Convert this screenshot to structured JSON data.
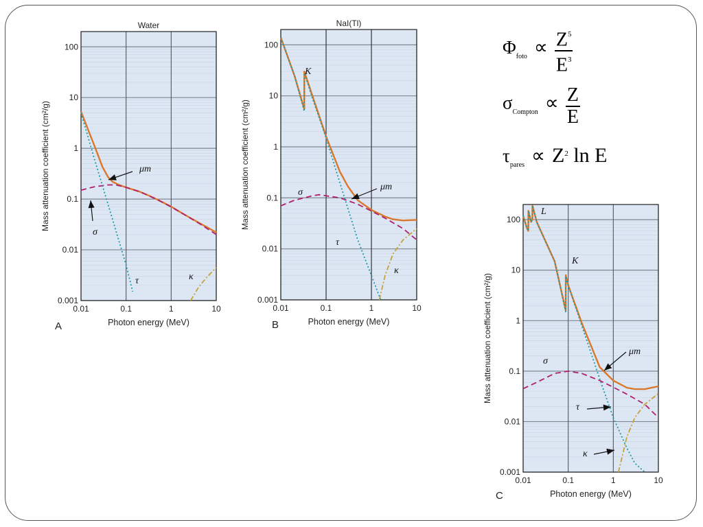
{
  "chart_data": [
    {
      "id": "A",
      "type": "line",
      "title": "Water",
      "panel_letter": "A",
      "xlabel": "Photon energy (MeV)",
      "ylabel": "Mass attenuation coefficient (cm²/g)",
      "x_scale": "log",
      "y_scale": "log",
      "xlim": [
        0.01,
        10
      ],
      "ylim": [
        0.001,
        200
      ],
      "x_ticks": [
        "0.01",
        "0.1",
        "1",
        "10"
      ],
      "y_ticks": [
        "0.001",
        "0.01",
        "0.1",
        "1",
        "10",
        "100"
      ],
      "grid": true,
      "series": [
        {
          "name": "μm",
          "style": "solid",
          "color": "#d9772a",
          "x": [
            0.01,
            0.015,
            0.02,
            0.03,
            0.04,
            0.05,
            0.07,
            0.1,
            0.2,
            0.3,
            0.5,
            1,
            2,
            3,
            5,
            10
          ],
          "y": [
            5.3,
            2.1,
            1.1,
            0.43,
            0.27,
            0.22,
            0.19,
            0.17,
            0.14,
            0.12,
            0.097,
            0.071,
            0.049,
            0.04,
            0.031,
            0.022
          ]
        },
        {
          "name": "σ",
          "style": "dash",
          "color": "#b0206e",
          "x": [
            0.01,
            0.02,
            0.04,
            0.06,
            0.1,
            0.2,
            0.5,
            1,
            2,
            5,
            10
          ],
          "y": [
            0.15,
            0.175,
            0.19,
            0.19,
            0.17,
            0.14,
            0.097,
            0.07,
            0.049,
            0.03,
            0.02
          ]
        },
        {
          "name": "τ",
          "style": "dot",
          "color": "#1a9aa6",
          "x": [
            0.01,
            0.02,
            0.05,
            0.1,
            0.14
          ],
          "y": [
            5,
            0.6,
            0.04,
            0.005,
            0.0015
          ]
        },
        {
          "name": "κ",
          "style": "dashdot",
          "color": "#c4a23a",
          "x": [
            2.7,
            4,
            6,
            10
          ],
          "y": [
            0.001,
            0.0018,
            0.0028,
            0.0045
          ]
        }
      ],
      "annotations": [
        "μm",
        "σ",
        "τ",
        "κ"
      ]
    },
    {
      "id": "B",
      "type": "line",
      "title": "NaI(Tl)",
      "panel_letter": "B",
      "xlabel": "Photon energy (MeV)",
      "ylabel": "Mass attenuation coefficient (cm²/g)",
      "x_scale": "log",
      "y_scale": "log",
      "xlim": [
        0.01,
        10
      ],
      "ylim": [
        0.001,
        200
      ],
      "x_ticks": [
        "0.01",
        "0.1",
        "1",
        "10"
      ],
      "y_ticks": [
        "0.001",
        "0.01",
        "0.1",
        "1",
        "10",
        "100"
      ],
      "grid": true,
      "series": [
        {
          "name": "μm",
          "style": "solid",
          "color": "#d9772a",
          "x": [
            0.01,
            0.02,
            0.033,
            0.0331,
            0.05,
            0.1,
            0.2,
            0.3,
            0.5,
            1,
            2,
            3,
            5,
            10
          ],
          "y": [
            140,
            25,
            5.5,
            30,
            10,
            1.6,
            0.33,
            0.17,
            0.09,
            0.058,
            0.043,
            0.038,
            0.036,
            0.037
          ]
        },
        {
          "name": "σ",
          "style": "dash",
          "color": "#b0206e",
          "x": [
            0.01,
            0.02,
            0.05,
            0.07,
            0.1,
            0.2,
            0.5,
            1,
            2,
            5,
            10
          ],
          "y": [
            0.07,
            0.09,
            0.11,
            0.115,
            0.11,
            0.1,
            0.075,
            0.055,
            0.04,
            0.025,
            0.015
          ]
        },
        {
          "name": "τ",
          "style": "dot",
          "color": "#1a9aa6",
          "x": [
            0.01,
            0.02,
            0.033,
            0.0331,
            0.05,
            0.1,
            0.2,
            0.5,
            1,
            1.6
          ],
          "y": [
            140,
            25,
            5,
            28,
            9,
            1.5,
            0.2,
            0.015,
            0.003,
            0.001
          ]
        },
        {
          "name": "κ",
          "style": "dashdot",
          "color": "#c4a23a",
          "x": [
            1.5,
            2,
            3,
            5,
            10
          ],
          "y": [
            0.001,
            0.003,
            0.008,
            0.015,
            0.025
          ]
        }
      ],
      "annotations": [
        "K",
        "μm",
        "σ",
        "τ",
        "κ"
      ]
    },
    {
      "id": "C",
      "type": "line",
      "title": "",
      "panel_letter": "C",
      "xlabel": "Photon energy (MeV)",
      "ylabel": "Mass attenuation coefficient (cm²/g)",
      "x_scale": "log",
      "y_scale": "log",
      "xlim": [
        0.01,
        10
      ],
      "ylim": [
        0.001,
        200
      ],
      "x_ticks": [
        "0.01",
        "0.1",
        "1",
        "10"
      ],
      "y_ticks": [
        "0.001",
        "0.01",
        "0.1",
        "1",
        "10",
        "100"
      ],
      "grid": true,
      "series": [
        {
          "name": "μm",
          "style": "solid",
          "color": "#d9772a",
          "x": [
            0.01,
            0.012,
            0.013,
            0.0131,
            0.015,
            0.016,
            0.0161,
            0.02,
            0.05,
            0.088,
            0.0881,
            0.1,
            0.2,
            0.5,
            1,
            2,
            3,
            5,
            10
          ],
          "y": [
            120,
            70,
            60,
            150,
            90,
            100,
            190,
            90,
            15,
            1.6,
            8,
            5,
            0.9,
            0.12,
            0.065,
            0.047,
            0.044,
            0.044,
            0.05
          ]
        },
        {
          "name": "σ",
          "style": "dash",
          "color": "#b0206e",
          "x": [
            0.01,
            0.02,
            0.05,
            0.1,
            0.2,
            0.5,
            1,
            2,
            5,
            10
          ],
          "y": [
            0.045,
            0.06,
            0.09,
            0.1,
            0.09,
            0.065,
            0.048,
            0.035,
            0.022,
            0.012
          ]
        },
        {
          "name": "τ",
          "style": "dot",
          "color": "#1a9aa6",
          "x": [
            0.01,
            0.012,
            0.013,
            0.0131,
            0.015,
            0.016,
            0.0161,
            0.02,
            0.05,
            0.088,
            0.0881,
            0.1,
            0.2,
            0.5,
            1,
            2,
            3,
            5
          ],
          "y": [
            120,
            70,
            60,
            150,
            90,
            100,
            190,
            90,
            15,
            1.5,
            7.5,
            5,
            0.8,
            0.07,
            0.012,
            0.003,
            0.0015,
            0.001
          ]
        },
        {
          "name": "κ",
          "style": "dashdot",
          "color": "#c4a23a",
          "x": [
            1.3,
            2,
            3,
            5,
            10
          ],
          "y": [
            0.001,
            0.005,
            0.012,
            0.022,
            0.036
          ]
        }
      ],
      "annotations": [
        "L",
        "K",
        "μm",
        "σ",
        "τ",
        "κ"
      ]
    }
  ],
  "formulas": {
    "foto_symbol": "Φ",
    "foto_sub": "foto",
    "prop": "∝",
    "foto_num": "Z",
    "foto_num_exp": "5",
    "foto_den": "E",
    "foto_den_exp": "3",
    "compton_symbol": "σ",
    "compton_sub": "Compton",
    "compton_num": "Z",
    "compton_den": "E",
    "pares_symbol": "τ",
    "pares_sub": "pares",
    "pares_rhs_base": "Z",
    "pares_rhs_exp": "2",
    "pares_rhs_tail": " ln E"
  }
}
